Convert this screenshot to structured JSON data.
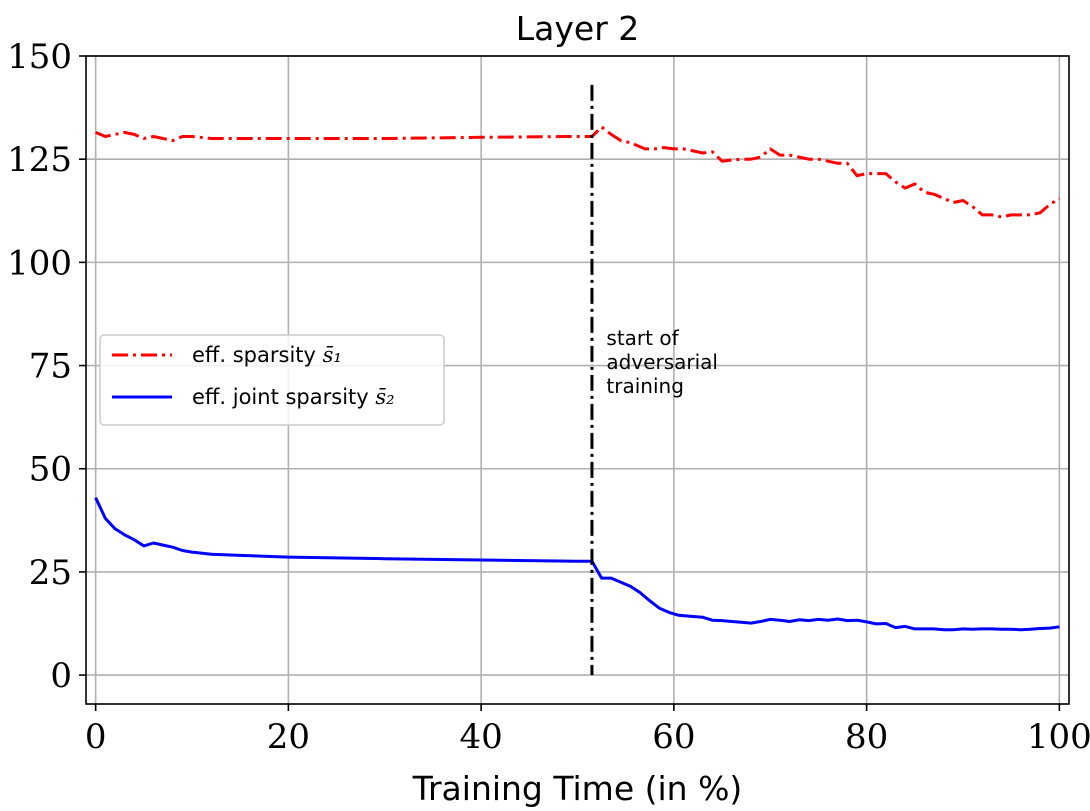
{
  "chart_data": {
    "type": "line",
    "title": "Layer 2",
    "xlabel": "Training Time (in %)",
    "ylabel": "",
    "xlim": [
      -1,
      101
    ],
    "ylim": [
      -7,
      150
    ],
    "xticks": [
      0,
      20,
      40,
      60,
      80,
      100
    ],
    "yticks": [
      0,
      25,
      50,
      75,
      100,
      125,
      150
    ],
    "grid": true,
    "legend_position": "center-left",
    "series": [
      {
        "name": "eff. sparsity s̄₁",
        "legend_prefix": "eff. sparsity",
        "legend_symbol": "s̄₁",
        "color": "#ff0000",
        "style": "dashdot",
        "x": [
          0,
          1,
          2,
          3,
          4,
          5,
          6,
          7,
          8,
          9,
          10,
          12,
          15,
          20,
          30,
          40,
          50,
          51.5,
          52.5,
          53.5,
          54.5,
          55.5,
          57,
          58,
          59,
          60,
          61,
          62,
          63,
          64,
          65,
          66,
          67,
          68,
          69,
          70,
          71,
          72,
          73,
          74,
          75,
          76,
          77,
          78,
          79,
          80,
          81,
          82,
          83,
          84,
          85,
          86,
          87,
          88,
          89,
          90,
          91,
          92,
          93,
          94,
          95,
          96,
          97,
          98,
          99,
          100
        ],
        "y": [
          131.5,
          130.5,
          131,
          131.5,
          131,
          130,
          130.5,
          130,
          129.5,
          130.5,
          130.5,
          130,
          130,
          130,
          130,
          130.3,
          130.5,
          130.5,
          132.8,
          131,
          129.5,
          129,
          127.5,
          127.5,
          127.8,
          127.5,
          127.5,
          127,
          126.5,
          126.8,
          124.5,
          124.8,
          125,
          125,
          125.5,
          127.5,
          126,
          126,
          125.5,
          125,
          125,
          124.5,
          124,
          124,
          121,
          121.5,
          121.5,
          121.5,
          119.5,
          118,
          119,
          117,
          116.5,
          115.5,
          114.5,
          115,
          113.5,
          111.5,
          111.5,
          111,
          111.5,
          111.5,
          111.5,
          112,
          114,
          115.5
        ]
      },
      {
        "name": "eff. joint sparsity s̄₂",
        "legend_prefix": "eff. joint sparsity",
        "legend_symbol": "s̄₂",
        "color": "#0000ff",
        "style": "solid",
        "x": [
          0,
          1,
          2,
          3,
          4,
          5,
          6,
          7,
          8,
          9,
          10,
          12,
          15,
          20,
          30,
          40,
          50,
          51.5,
          52.5,
          53.5,
          54.5,
          55.5,
          56.5,
          57.5,
          58.5,
          59.5,
          60.5,
          62,
          63,
          64,
          65,
          66,
          67,
          68,
          69,
          70,
          71,
          72,
          73,
          74,
          75,
          76,
          77,
          78,
          79,
          80,
          81,
          82,
          83,
          84,
          85,
          86,
          87,
          88,
          89,
          90,
          91,
          92,
          93,
          94,
          95,
          96,
          97,
          98,
          99,
          100
        ],
        "y": [
          43,
          38,
          35.5,
          34,
          32.8,
          31.3,
          32,
          31.5,
          31,
          30.2,
          29.8,
          29.3,
          29,
          28.6,
          28.2,
          27.9,
          27.6,
          27.6,
          23.5,
          23.5,
          22.5,
          21.5,
          20,
          18,
          16.2,
          15.2,
          14.5,
          14.2,
          14,
          13.3,
          13.2,
          13,
          12.8,
          12.6,
          13,
          13.5,
          13.3,
          13,
          13.4,
          13.2,
          13.5,
          13.3,
          13.6,
          13.2,
          13.3,
          12.9,
          12.4,
          12.5,
          11.5,
          11.8,
          11.2,
          11.2,
          11.2,
          11,
          11,
          11.2,
          11.1,
          11.2,
          11.2,
          11.1,
          11.1,
          11,
          11.1,
          11.3,
          11.4,
          11.7
        ]
      }
    ],
    "vertical_line": {
      "x": 51.5,
      "y_from": 0,
      "y_to": 143,
      "color": "#000000",
      "style": "dashdot"
    },
    "annotation": {
      "lines": [
        "start of",
        "adversarial",
        "training"
      ],
      "x": 53,
      "y": 80
    }
  }
}
